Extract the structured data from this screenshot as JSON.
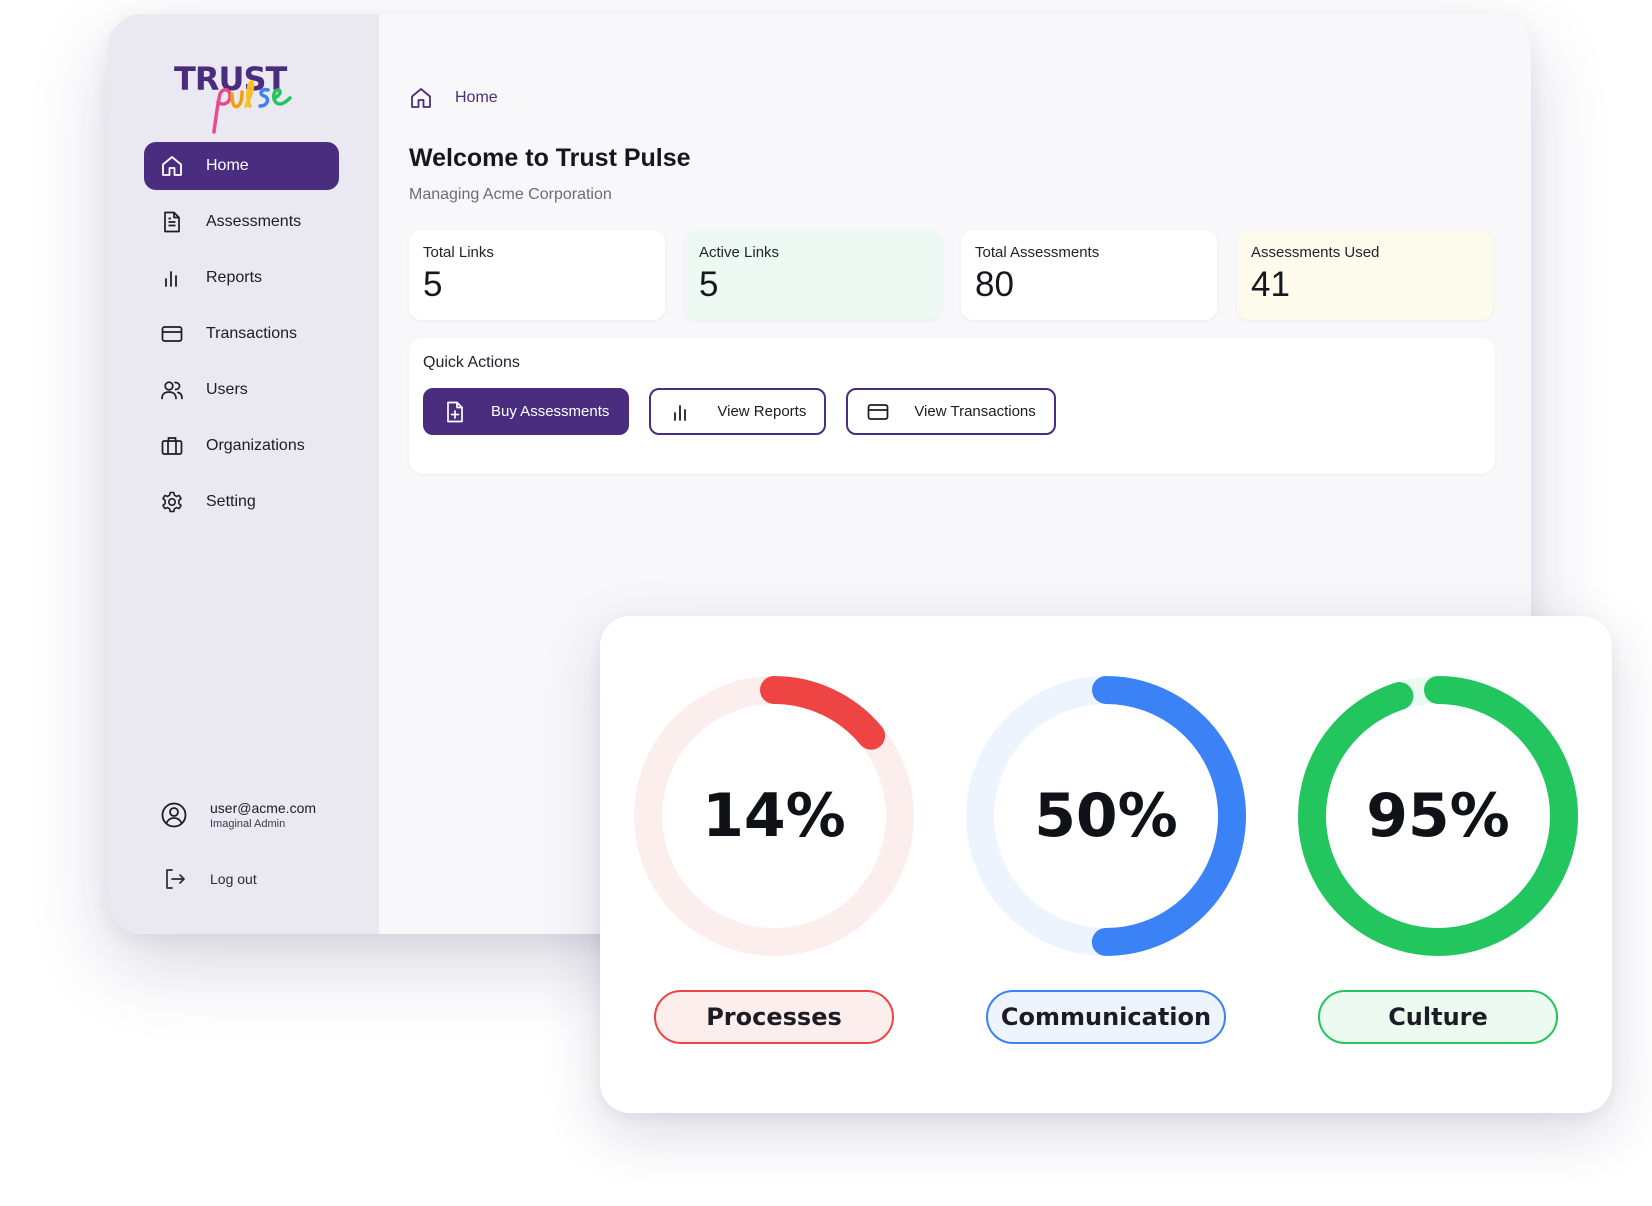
{
  "brand": {
    "line1": "TRUST",
    "line2": "pulse"
  },
  "sidebar": {
    "items": [
      {
        "label": "Home",
        "icon": "home-icon",
        "active": true
      },
      {
        "label": "Assessments",
        "icon": "document-icon"
      },
      {
        "label": "Reports",
        "icon": "bar-chart-icon"
      },
      {
        "label": "Transactions",
        "icon": "credit-card-icon"
      },
      {
        "label": "Users",
        "icon": "users-icon"
      },
      {
        "label": "Organizations",
        "icon": "briefcase-icon"
      },
      {
        "label": "Setting",
        "icon": "gear-icon"
      }
    ],
    "user": {
      "email": "user@acme.com",
      "role": "Imaginal Admin"
    },
    "logout_label": "Log out"
  },
  "breadcrumb": {
    "label": "Home"
  },
  "header": {
    "title": "Welcome to Trust Pulse",
    "subtitle": "Managing Acme Corporation"
  },
  "stats": [
    {
      "label": "Total Links",
      "value": "5"
    },
    {
      "label": "Active Links",
      "value": "5"
    },
    {
      "label": "Total Assessments",
      "value": "80"
    },
    {
      "label": "Assessments Used",
      "value": "41"
    }
  ],
  "quick_actions": {
    "title": "Quick Actions",
    "buttons": [
      {
        "label": "Buy Assessments",
        "icon": "file-plus-icon"
      },
      {
        "label": "View Reports",
        "icon": "bar-chart-icon"
      },
      {
        "label": "View Transactions",
        "icon": "credit-card-icon"
      }
    ]
  },
  "scores": [
    {
      "label": "Processes",
      "value": 14,
      "display": "14%",
      "color": "#ef4444",
      "track": "#fdeeee",
      "pill_bg": "#fdeeee"
    },
    {
      "label": "Communication",
      "value": 50,
      "display": "50%",
      "color": "#3b82f6",
      "track": "#eef4fe",
      "pill_bg": "#eef4fe"
    },
    {
      "label": "Culture",
      "value": 95,
      "display": "95%",
      "color": "#22c55e",
      "track": "#ecfaf1",
      "pill_bg": "#ecfaf1"
    }
  ],
  "colors": {
    "accent": "#4b2d7f"
  }
}
